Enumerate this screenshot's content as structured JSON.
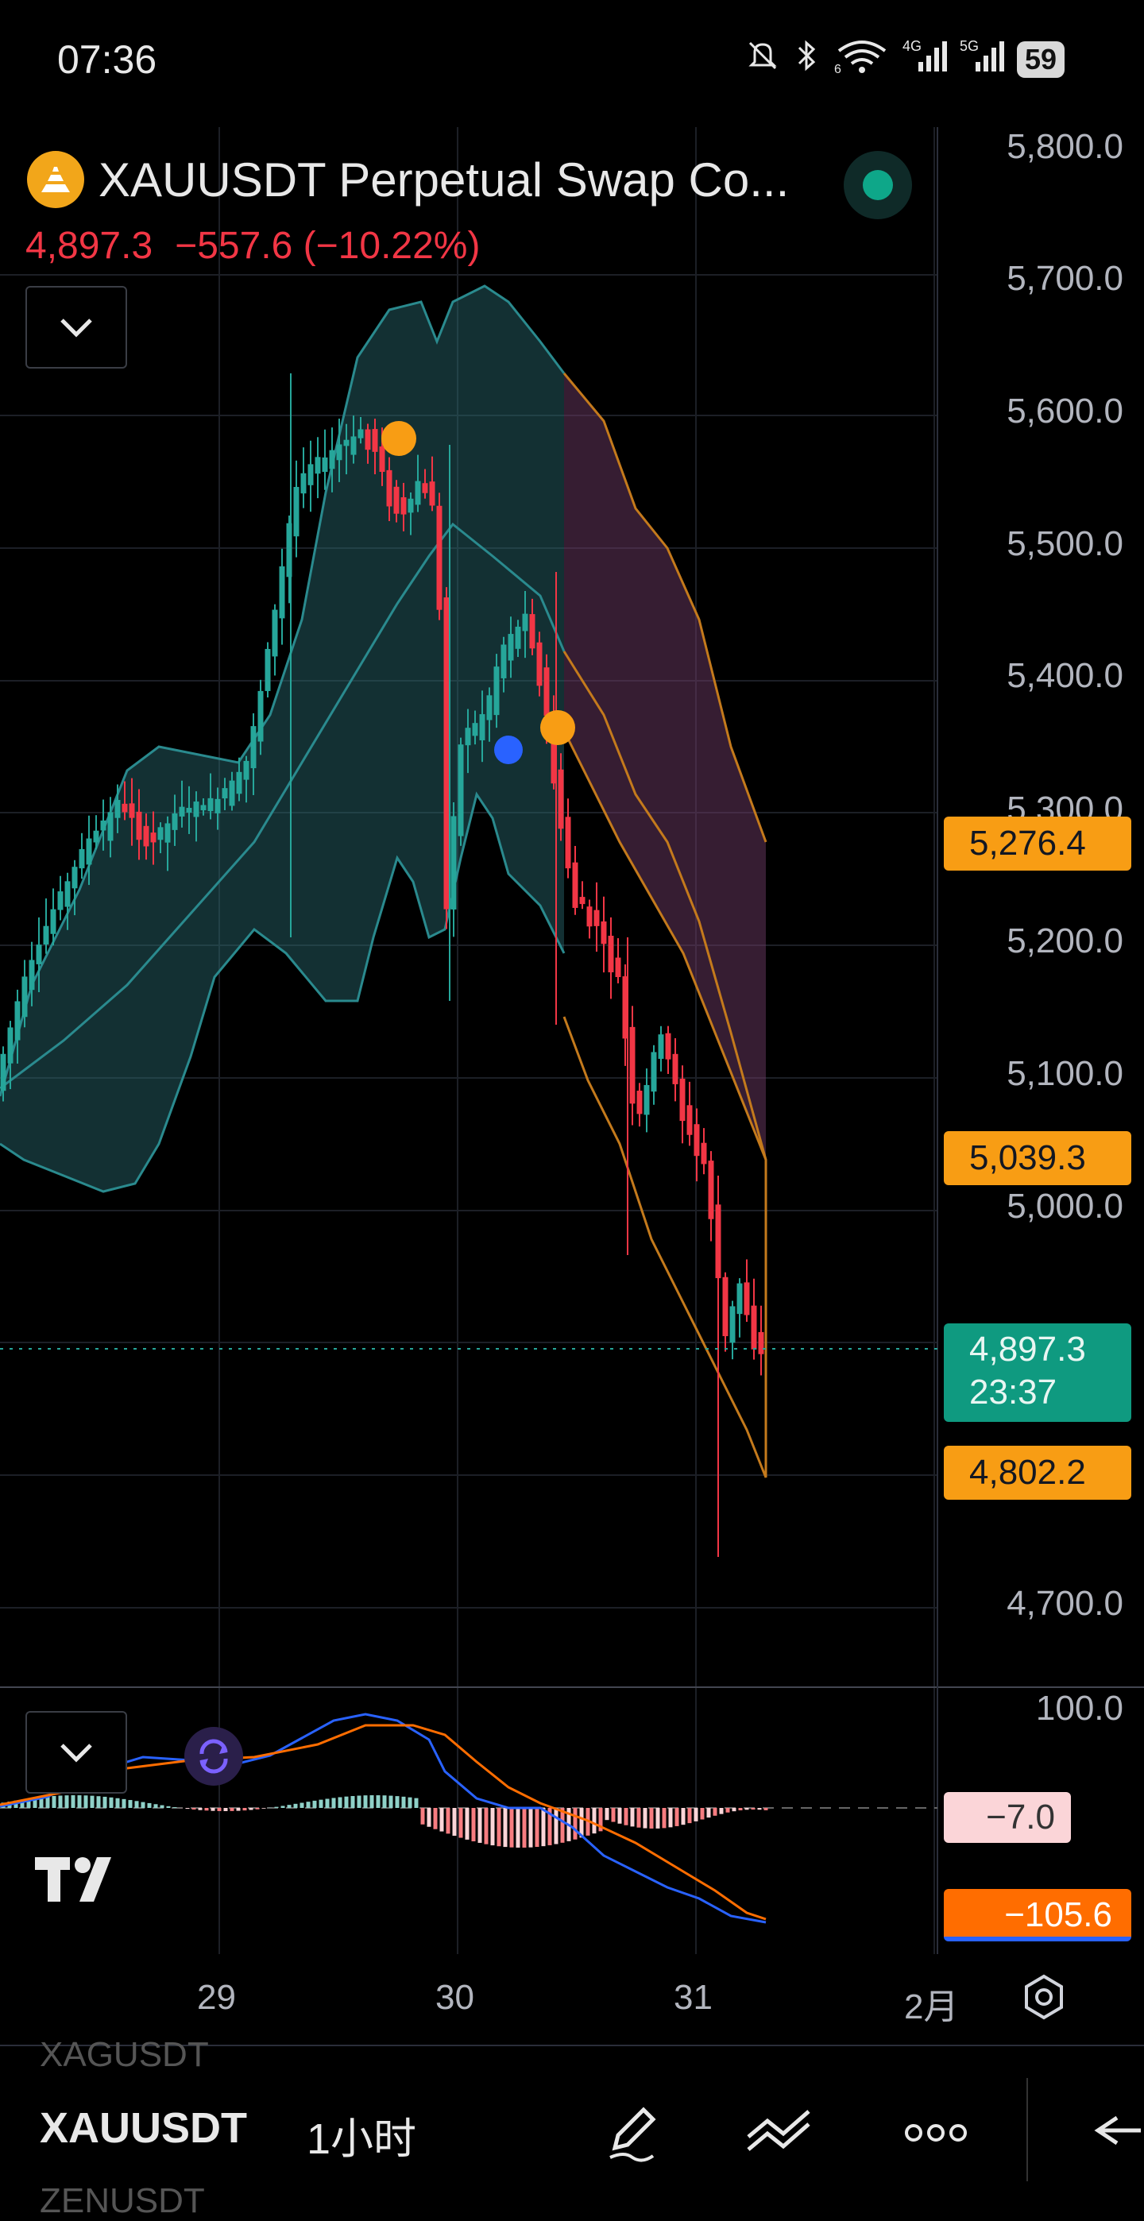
{
  "status_bar": {
    "time": "07:36",
    "battery": "59",
    "signal_4g": "4G",
    "signal_5g": "5G",
    "wifi_sub": "6"
  },
  "header": {
    "symbol_title": "XAUUSDT Perpetual Swap Co...",
    "last_price": "4,897.3",
    "change": "−557.6",
    "change_pct": "(−10.22%)",
    "market_status_color": "#0ea789"
  },
  "price_axis": {
    "labels": [
      "5,800.0",
      "5,700.0",
      "5,600.0",
      "5,500.0",
      "5,400.0",
      "5,300.0",
      "5,200.0",
      "5,100.0",
      "5,000.0",
      "4,700.0"
    ],
    "tags": {
      "upper_band": "5,276.4",
      "middle_band": "5,039.3",
      "current_price": "4,897.3",
      "countdown": "23:37",
      "lower_band": "4,802.2"
    }
  },
  "indicator_axis": {
    "top": "100.0",
    "histogram_value": "−7.0",
    "signal_value": "−105.6"
  },
  "time_axis": {
    "labels": [
      "29",
      "30",
      "31",
      "2月"
    ]
  },
  "bottom_bar": {
    "prev_symbol": "XAGUSDT",
    "symbol": "XAUUSDT",
    "next_symbol": "ZENUSDT",
    "interval": "1小时"
  },
  "icons": {
    "collapse": "chevron-down-icon",
    "replay": "replay-icon",
    "settings": "settings-icon",
    "draw": "pencil-icon",
    "indicators": "indicators-icon",
    "more": "more-icon",
    "undo": "undo-icon"
  },
  "colors": {
    "up": "#26a69a",
    "down": "#f23645",
    "band_orange": "#f89d14",
    "band_teal": "#2a8a8e",
    "macd_line": "#2962ff",
    "signal_line": "#ff6d00"
  }
}
